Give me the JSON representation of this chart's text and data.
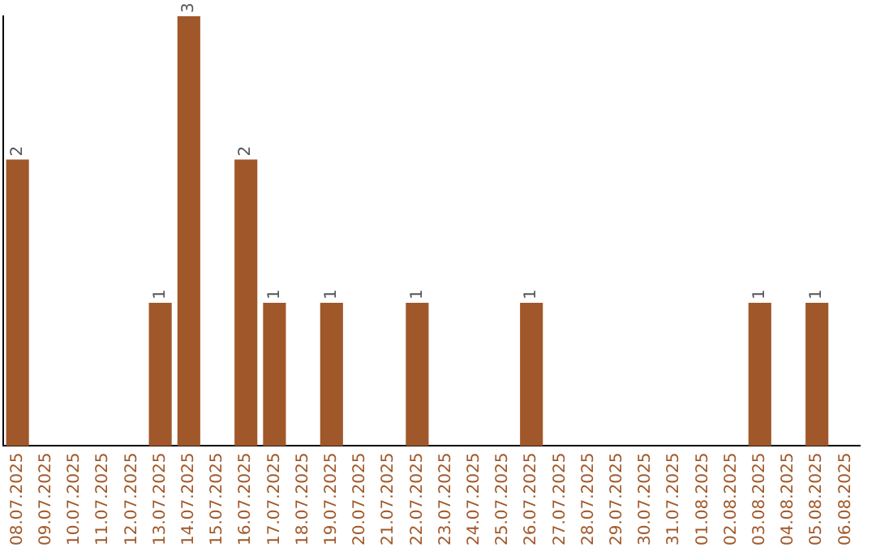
{
  "chart_data": {
    "type": "bar",
    "categories": [
      "08.07.2025",
      "09.07.2025",
      "10.07.2025",
      "11.07.2025",
      "12.07.2025",
      "13.07.2025",
      "14.07.2025",
      "15.07.2025",
      "16.07.2025",
      "17.07.2025",
      "18.07.2025",
      "19.07.2025",
      "20.07.2025",
      "21.07.2025",
      "22.07.2025",
      "23.07.2025",
      "24.07.2025",
      "25.07.2025",
      "26.07.2025",
      "27.07.2025",
      "28.07.2025",
      "29.07.2025",
      "30.07.2025",
      "31.07.2025",
      "01.08.2025",
      "02.08.2025",
      "03.08.2025",
      "04.08.2025",
      "05.08.2025",
      "06.08.2025"
    ],
    "values": [
      2,
      0,
      0,
      0,
      0,
      1,
      3,
      0,
      2,
      1,
      0,
      1,
      0,
      0,
      1,
      0,
      0,
      0,
      1,
      0,
      0,
      0,
      0,
      0,
      0,
      0,
      1,
      0,
      1,
      0
    ],
    "value_labels": [
      "2",
      null,
      null,
      null,
      null,
      "1",
      "3",
      null,
      "2",
      "1",
      null,
      "1",
      null,
      null,
      "1",
      null,
      null,
      null,
      "1",
      null,
      null,
      null,
      null,
      null,
      null,
      null,
      "1",
      null,
      "1",
      null
    ],
    "color": "#a0582a",
    "tick_labels": "x",
    "grid": false,
    "legend": false
  }
}
